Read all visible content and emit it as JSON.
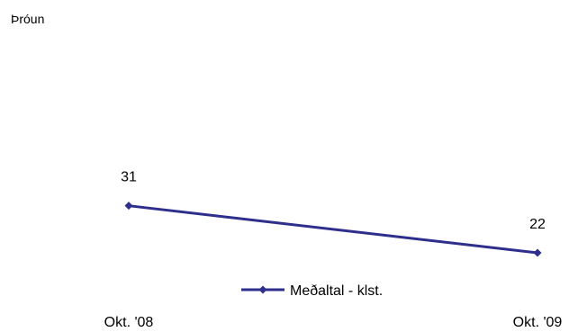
{
  "chart_data": {
    "type": "line",
    "title": "Þróun",
    "categories": [
      "Okt. '08",
      "Okt. '09"
    ],
    "series": [
      {
        "name": "Meðaltal - klst.",
        "values": [
          31,
          22
        ],
        "color": "#2e2e8c",
        "marker": "diamond"
      }
    ],
    "data_labels": [
      "31",
      "22"
    ],
    "legend_position": "bottom",
    "grid": false,
    "ylim": [
      0,
      60
    ]
  }
}
